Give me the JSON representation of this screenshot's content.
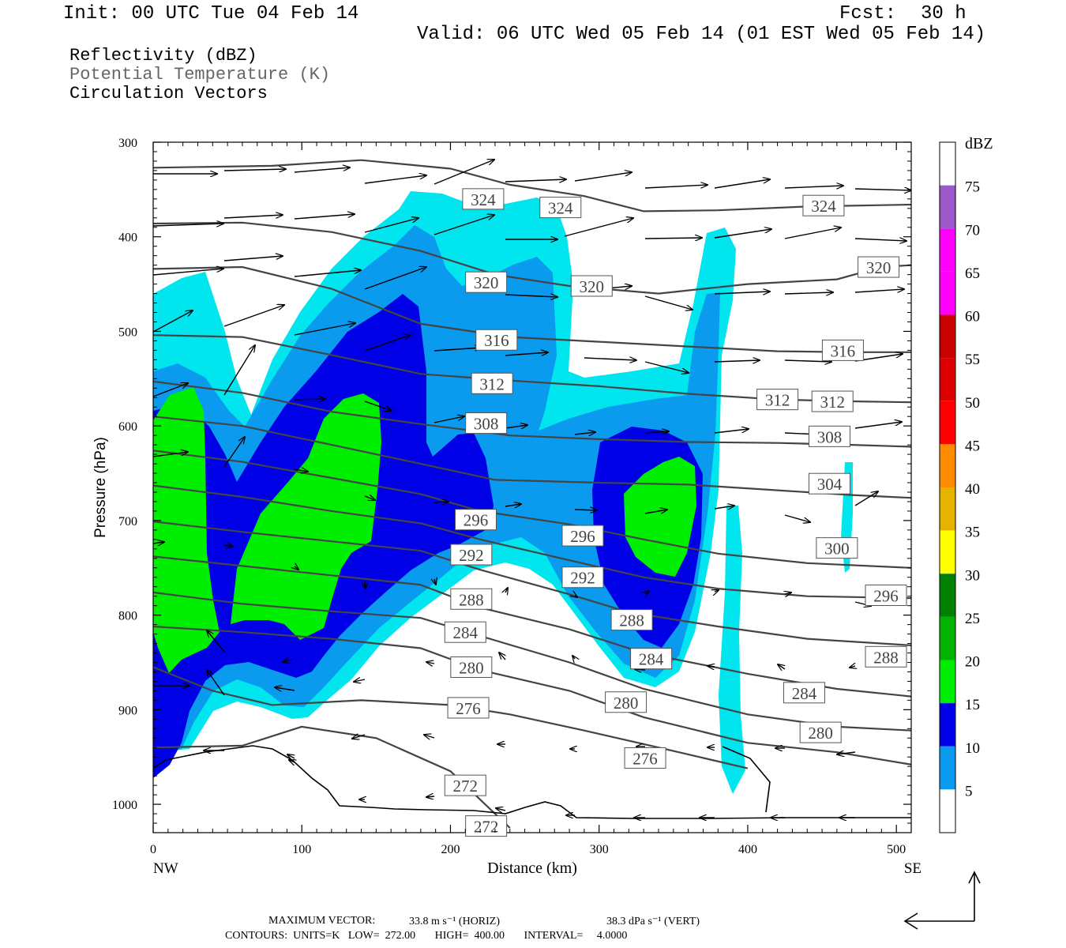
{
  "header": {
    "init": "Init: 00 UTC Tue 04 Feb 14",
    "fcst_label": "Fcst:",
    "fcst_value": "30 h",
    "valid": "Valid: 06 UTC Wed 05 Feb 14 (01 EST Wed 05 Feb 14)"
  },
  "fields": {
    "reflectivity": "Reflectivity (dBZ)",
    "theta": "Potential Temperature (K)",
    "vectors": "Circulation Vectors"
  },
  "footer": {
    "max_vector_label": "MAXIMUM VECTOR:",
    "max_horiz": "33.8 m s⁻¹ (HORIZ)",
    "max_vert": "38.3 dPa s⁻¹ (VERT)",
    "contours": "CONTOURS:  UNITS=K   LOW=  272.00       HIGH=  400.00       INTERVAL=     4.0000"
  },
  "colors": {
    "c5": "#00e5ee",
    "c10": "#0a9bee",
    "c15": "#0000e6",
    "c20": "#00ee00",
    "c25": "#00b400",
    "c30": "#008000",
    "c35": "#ffff00",
    "c40": "#e6b400",
    "c45": "#ff8c00",
    "c50": "#ff0000",
    "c55": "#dc0000",
    "c60": "#c80000",
    "c65": "#ff00ff",
    "c70": "#ff00ff",
    "c75": "#9b59cc",
    "contour": "#444444"
  },
  "chart_data": {
    "type": "cross-section",
    "xlabel": "Distance (km)",
    "ylabel": "Pressure (hPa)",
    "xlim": [
      0,
      510
    ],
    "ylim": [
      300,
      1030
    ],
    "x_ticks": [
      "0",
      "100",
      "200",
      "300",
      "400",
      "500"
    ],
    "x_tick_values": [
      0,
      100,
      200,
      300,
      400,
      500
    ],
    "y_ticks": [
      "300",
      "400",
      "500",
      "600",
      "700",
      "800",
      "900",
      "1000"
    ],
    "y_tick_values": [
      300,
      400,
      500,
      600,
      700,
      800,
      900,
      1000
    ],
    "left_end": "NW",
    "right_end": "SE",
    "colorbar": {
      "unit": "dBZ",
      "labels": [
        "75",
        "70",
        "65",
        "60",
        "55",
        "50",
        "45",
        "40",
        "35",
        "30",
        "25",
        "20",
        "15",
        "10",
        "5"
      ],
      "levels": [
        75,
        70,
        65,
        60,
        55,
        50,
        45,
        40,
        35,
        30,
        25,
        20,
        15,
        10,
        5
      ]
    },
    "contour_labels": [
      {
        "text": "324",
        "x": 222,
        "p": 360
      },
      {
        "text": "324",
        "x": 274,
        "p": 369
      },
      {
        "text": "324",
        "x": 451,
        "p": 367
      },
      {
        "text": "320",
        "x": 224,
        "p": 448
      },
      {
        "text": "320",
        "x": 295,
        "p": 452
      },
      {
        "text": "320",
        "x": 488,
        "p": 432
      },
      {
        "text": "316",
        "x": 231,
        "p": 509
      },
      {
        "text": "316",
        "x": 464,
        "p": 520
      },
      {
        "text": "312",
        "x": 228,
        "p": 555
      },
      {
        "text": "312",
        "x": 420,
        "p": 572
      },
      {
        "text": "312",
        "x": 457,
        "p": 574
      },
      {
        "text": "308",
        "x": 224,
        "p": 597
      },
      {
        "text": "308",
        "x": 455,
        "p": 611
      },
      {
        "text": "304",
        "x": 455,
        "p": 661
      },
      {
        "text": "300",
        "x": 460,
        "p": 729
      },
      {
        "text": "296",
        "x": 217,
        "p": 699
      },
      {
        "text": "296",
        "x": 289,
        "p": 716
      },
      {
        "text": "296",
        "x": 493,
        "p": 779
      },
      {
        "text": "292",
        "x": 214,
        "p": 736
      },
      {
        "text": "292",
        "x": 289,
        "p": 760
      },
      {
        "text": "288",
        "x": 214,
        "p": 783
      },
      {
        "text": "288",
        "x": 322,
        "p": 805
      },
      {
        "text": "288",
        "x": 493,
        "p": 844
      },
      {
        "text": "284",
        "x": 210,
        "p": 818
      },
      {
        "text": "284",
        "x": 335,
        "p": 846
      },
      {
        "text": "284",
        "x": 438,
        "p": 882
      },
      {
        "text": "280",
        "x": 214,
        "p": 855
      },
      {
        "text": "280",
        "x": 318,
        "p": 892
      },
      {
        "text": "280",
        "x": 449,
        "p": 924
      },
      {
        "text": "276",
        "x": 212,
        "p": 898
      },
      {
        "text": "276",
        "x": 331,
        "p": 951
      },
      {
        "text": "272",
        "x": 210,
        "p": 980
      },
      {
        "text": "272",
        "x": 224,
        "p": 1023
      }
    ]
  }
}
